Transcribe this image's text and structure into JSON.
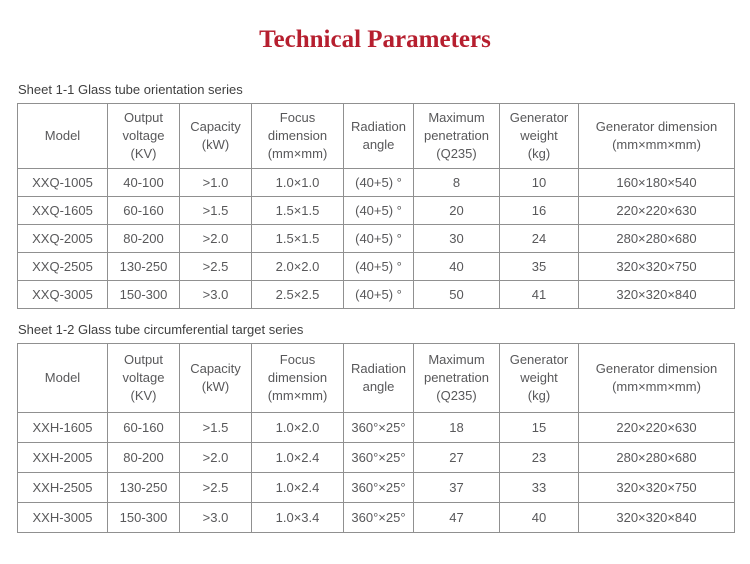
{
  "page": {
    "title": "Technical Parameters"
  },
  "colors": {
    "title": "#b61f2f",
    "table_border": "#909090",
    "table_text": "#58585a",
    "caption_text": "#3f3f3f",
    "background": "#ffffff"
  },
  "tables": [
    {
      "caption": "Sheet 1-1 Glass tube orientation series",
      "headers": [
        "Model",
        "Output\nvoltage\n(KV)",
        "Capacity\n(kW)",
        "Focus\ndimension\n(mm×mm)",
        "Radiation\nangle",
        "Maximum\npenetration\n(Q235)",
        "Generator\nweight\n(kg)",
        "Generator dimension\n(mm×mm×mm)"
      ],
      "rows": [
        [
          "XXQ-1005",
          "40-100",
          ">1.0",
          "1.0×1.0",
          "(40+5) °",
          "8",
          "10",
          "160×180×540"
        ],
        [
          "XXQ-1605",
          "60-160",
          ">1.5",
          "1.5×1.5",
          "(40+5) °",
          "20",
          "16",
          "220×220×630"
        ],
        [
          "XXQ-2005",
          "80-200",
          ">2.0",
          "1.5×1.5",
          "(40+5) °",
          "30",
          "24",
          "280×280×680"
        ],
        [
          "XXQ-2505",
          "130-250",
          ">2.5",
          "2.0×2.0",
          "(40+5) °",
          "40",
          "35",
          "320×320×750"
        ],
        [
          "XXQ-3005",
          "150-300",
          ">3.0",
          "2.5×2.5",
          "(40+5) °",
          "50",
          "41",
          "320×320×840"
        ]
      ]
    },
    {
      "caption": "Sheet 1-2 Glass tube circumferential target series",
      "headers": [
        "Model",
        "Output\nvoltage\n(KV)",
        "Capacity\n(kW)",
        "Focus\ndimension\n(mm×mm)",
        "Radiation\nangle",
        "Maximum\npenetration\n(Q235)",
        "Generator\nweight\n(kg)",
        "Generator dimension\n(mm×mm×mm)"
      ],
      "rows": [
        [
          "XXH-1605",
          "60-160",
          ">1.5",
          "1.0×2.0",
          "360°×25°",
          "18",
          "15",
          "220×220×630"
        ],
        [
          "XXH-2005",
          "80-200",
          ">2.0",
          "1.0×2.4",
          "360°×25°",
          "27",
          "23",
          "280×280×680"
        ],
        [
          "XXH-2505",
          "130-250",
          ">2.5",
          "1.0×2.4",
          "360°×25°",
          "37",
          "33",
          "320×320×750"
        ],
        [
          "XXH-3005",
          "150-300",
          ">3.0",
          "1.0×3.4",
          "360°×25°",
          "47",
          "40",
          "320×320×840"
        ]
      ]
    }
  ]
}
